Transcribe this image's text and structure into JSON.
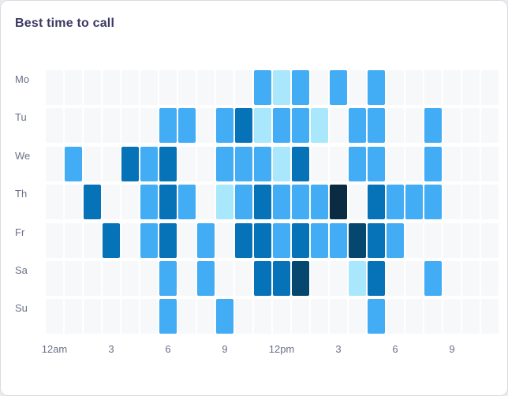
{
  "card": {
    "title": "Best time to call"
  },
  "chart_data": {
    "type": "heatmap",
    "title": "Best time to call",
    "y_categories": [
      "Mo",
      "Tu",
      "We",
      "Th",
      "Fr",
      "Sa",
      "Su"
    ],
    "columns": 24,
    "x_tick_labels": [
      {
        "col": 0,
        "label": "12am"
      },
      {
        "col": 3,
        "label": "3"
      },
      {
        "col": 6,
        "label": "6"
      },
      {
        "col": 9,
        "label": "9"
      },
      {
        "col": 12,
        "label": "12pm"
      },
      {
        "col": 15,
        "label": "3"
      },
      {
        "col": 18,
        "label": "6"
      },
      {
        "col": 21,
        "label": "9"
      }
    ],
    "intensity_levels": {
      "0": "none",
      "1": "low",
      "2": "medium",
      "3": "high",
      "4": "very-high",
      "5": "peak"
    },
    "palette": {
      "0": "#F7F8F9",
      "1": "#A9E8FC",
      "2": "#42ADF5",
      "3": "#0673B8",
      "4": "#05476F",
      "5": "#0A2B42"
    },
    "values": [
      [
        0,
        0,
        0,
        0,
        0,
        0,
        0,
        0,
        0,
        0,
        0,
        2,
        1,
        2,
        0,
        2,
        0,
        2,
        0,
        0,
        0,
        0,
        0,
        0
      ],
      [
        0,
        0,
        0,
        0,
        0,
        0,
        2,
        2,
        0,
        2,
        3,
        1,
        2,
        2,
        1,
        0,
        2,
        2,
        0,
        0,
        2,
        0,
        0,
        0
      ],
      [
        0,
        2,
        0,
        0,
        3,
        2,
        3,
        0,
        0,
        2,
        2,
        2,
        1,
        3,
        0,
        0,
        2,
        2,
        0,
        0,
        2,
        0,
        0,
        0
      ],
      [
        0,
        0,
        3,
        0,
        0,
        2,
        3,
        2,
        0,
        1,
        2,
        3,
        2,
        2,
        2,
        5,
        0,
        3,
        2,
        2,
        2,
        0,
        0,
        0
      ],
      [
        0,
        0,
        0,
        3,
        0,
        2,
        3,
        0,
        2,
        0,
        3,
        3,
        2,
        3,
        2,
        2,
        4,
        3,
        2,
        0,
        0,
        0,
        0,
        0
      ],
      [
        0,
        0,
        0,
        0,
        0,
        0,
        2,
        0,
        2,
        0,
        0,
        3,
        3,
        4,
        0,
        0,
        1,
        3,
        0,
        0,
        2,
        0,
        0,
        0
      ],
      [
        0,
        0,
        0,
        0,
        0,
        0,
        2,
        0,
        0,
        2,
        0,
        0,
        0,
        0,
        0,
        0,
        0,
        2,
        0,
        0,
        0,
        0,
        0,
        0
      ]
    ],
    "legend_position": "none",
    "grid_visible": true
  },
  "colors": {
    "page_bg": "#E9ECEF",
    "card_bg": "#FFFFFF",
    "card_border": "#D8DCE1",
    "title_text": "#3C3961",
    "axis_label_text": "#6B7088"
  }
}
